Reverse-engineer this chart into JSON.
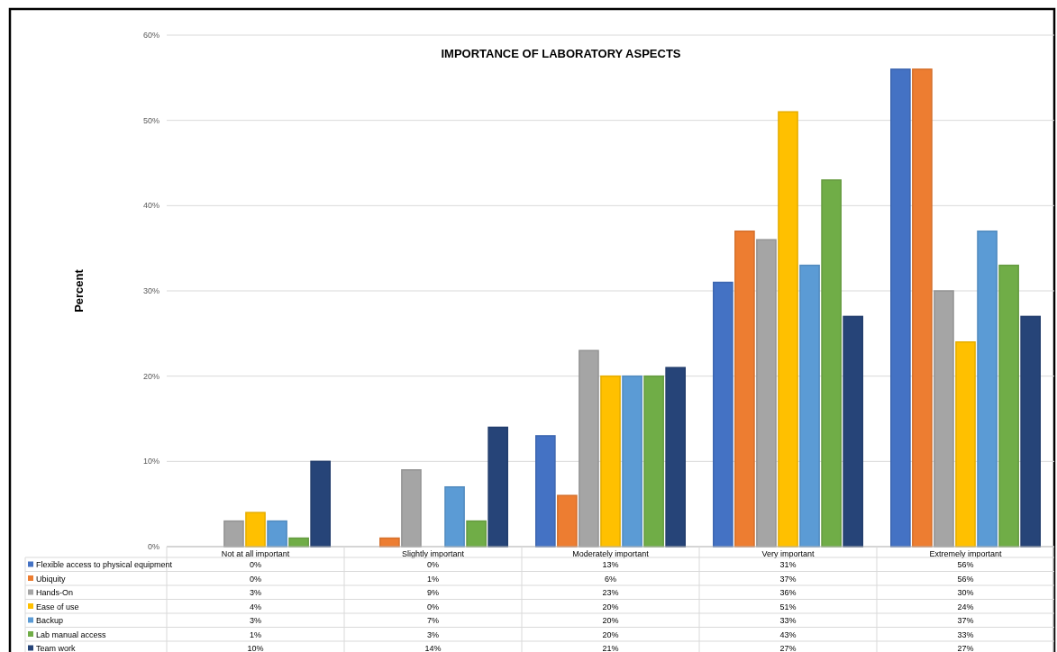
{
  "chart_data": {
    "type": "bar",
    "title": "IMPORTANCE OF LABORATORY ASPECTS",
    "ylabel": "Percent",
    "categories": [
      "Not at all important",
      "Slightly important",
      "Moderately important",
      "Very important",
      "Extremely important"
    ],
    "series": [
      {
        "name": "Flexible access to physical equipment",
        "color": "#4472c4",
        "values": [
          0,
          0,
          13,
          31,
          56
        ],
        "value_labels": [
          "0%",
          "0%",
          "13%",
          "31%",
          "56%"
        ]
      },
      {
        "name": "Ubiquity",
        "color": "#ed7d31",
        "values": [
          0,
          1,
          6,
          37,
          56
        ],
        "value_labels": [
          "0%",
          "1%",
          "6%",
          "37%",
          "56%"
        ]
      },
      {
        "name": "Hands-On",
        "color": "#a5a5a5",
        "values": [
          3,
          9,
          23,
          36,
          30
        ],
        "value_labels": [
          "3%",
          "9%",
          "23%",
          "36%",
          "30%"
        ]
      },
      {
        "name": "Ease of use",
        "color": "#ffc000",
        "values": [
          4,
          0,
          20,
          51,
          24
        ],
        "value_labels": [
          "4%",
          "0%",
          "20%",
          "51%",
          "24%"
        ]
      },
      {
        "name": "Backup",
        "color": "#5b9bd5",
        "values": [
          3,
          7,
          20,
          33,
          37
        ],
        "value_labels": [
          "3%",
          "7%",
          "20%",
          "33%",
          "37%"
        ]
      },
      {
        "name": "Lab manual access",
        "color": "#70ad47",
        "values": [
          1,
          3,
          20,
          43,
          33
        ],
        "value_labels": [
          "1%",
          "3%",
          "20%",
          "43%",
          "33%"
        ]
      },
      {
        "name": "Team work",
        "color": "#264478",
        "values": [
          10,
          14,
          21,
          27,
          27
        ],
        "value_labels": [
          "10%",
          "14%",
          "21%",
          "27%",
          "27%"
        ]
      }
    ],
    "ylim": [
      0,
      60
    ],
    "yticks": [
      {
        "value": 0,
        "label": "0%"
      },
      {
        "value": 10,
        "label": "10%"
      },
      {
        "value": 20,
        "label": "20%"
      },
      {
        "value": 30,
        "label": "30%"
      },
      {
        "value": 40,
        "label": "40%"
      },
      {
        "value": 50,
        "label": "50%"
      },
      {
        "value": 60,
        "label": "60%"
      }
    ],
    "grid": "y",
    "legend": "bottom"
  }
}
